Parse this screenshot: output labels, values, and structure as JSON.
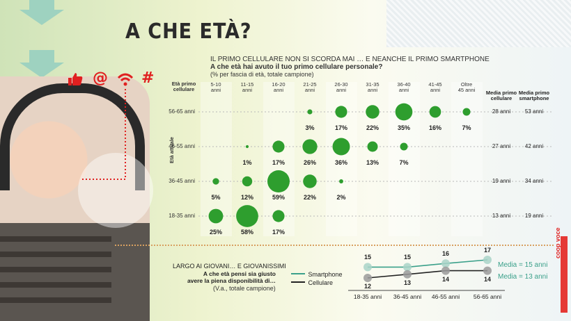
{
  "title": "A CHE ETÀ?",
  "subtitle_1": "IL PRIMO CELLULARE NON SI SCORDA MAI … E NEANCHE IL PRIMO SMARTPHONE",
  "subtitle_2": "A che età hai avuto il tuo primo cellulare personale?",
  "subtitle_3": "(% per fascia di età, totale campione)",
  "icons": [
    "thumbs-up-icon",
    "at-icon",
    "wifi-icon",
    "hashtag-icon"
  ],
  "colors": {
    "bubble": "#2e9e2e",
    "accent_red": "#e02020",
    "smartphone_line": "#3aa08a",
    "cellulare_line": "#222222"
  },
  "brand": "coop voce",
  "chart_data": [
    {
      "type": "bubble",
      "row_axis_label": "Età attuale",
      "column_header_label": "Età primo cellulare",
      "columns": [
        "5-10 anni",
        "11-15 anni",
        "16-20 anni",
        "21-25 anni",
        "26-30 anni",
        "31-35 anni",
        "36-40 anni",
        "41-45 anni",
        "Oltre 45 anni"
      ],
      "column_lines": [
        [
          "5-10",
          "anni"
        ],
        [
          "11-15",
          "anni"
        ],
        [
          "16-20",
          "anni"
        ],
        [
          "21-25",
          "anni"
        ],
        [
          "26-30",
          "anni"
        ],
        [
          "31-35",
          "anni"
        ],
        [
          "36-40",
          "anni"
        ],
        [
          "41-45",
          "anni"
        ],
        [
          "Oltre",
          "45 anni"
        ]
      ],
      "average_headers": [
        [
          "Media primo",
          "cellulare"
        ],
        [
          "Media primo",
          "smartphone"
        ]
      ],
      "rows": [
        {
          "label": "56-65 anni",
          "values": [
            null,
            null,
            null,
            3,
            17,
            22,
            35,
            16,
            7
          ],
          "media_cellulare": "28 anni",
          "media_smartphone": "53 anni"
        },
        {
          "label": "46-55 anni",
          "values": [
            null,
            1,
            17,
            26,
            36,
            13,
            7,
            null,
            null
          ],
          "media_cellulare": "27 anni",
          "media_smartphone": "42 anni"
        },
        {
          "label": "36-45 anni",
          "values": [
            5,
            12,
            59,
            22,
            2,
            null,
            null,
            null,
            null
          ],
          "media_cellulare": "19 anni",
          "media_smartphone": "34 anni"
        },
        {
          "label": "18-35 anni",
          "values": [
            25,
            58,
            17,
            null,
            null,
            null,
            null,
            null,
            null
          ],
          "media_cellulare": "13 anni",
          "media_smartphone": "19 anni"
        }
      ],
      "unit": "%"
    },
    {
      "type": "line",
      "title": "LARGO AI GIOVANI… E GIOVANISSIMI",
      "question": "A che età pensi sia giusto avere la piena disponibilità di…",
      "question_lines": [
        "A che età pensi sia giusto",
        "avere la piena disponibilità di…"
      ],
      "note": "(V.a., totale campione)",
      "categories": [
        "18-35 anni",
        "36-45 anni",
        "46-55 anni",
        "56-65 anni"
      ],
      "series": [
        {
          "name": "Smartphone",
          "values": [
            15,
            15,
            16,
            17
          ],
          "media": "Media = 15 anni"
        },
        {
          "name": "Cellulare",
          "values": [
            12,
            13,
            14,
            14
          ],
          "media": "Media = 13 anni"
        }
      ]
    }
  ]
}
